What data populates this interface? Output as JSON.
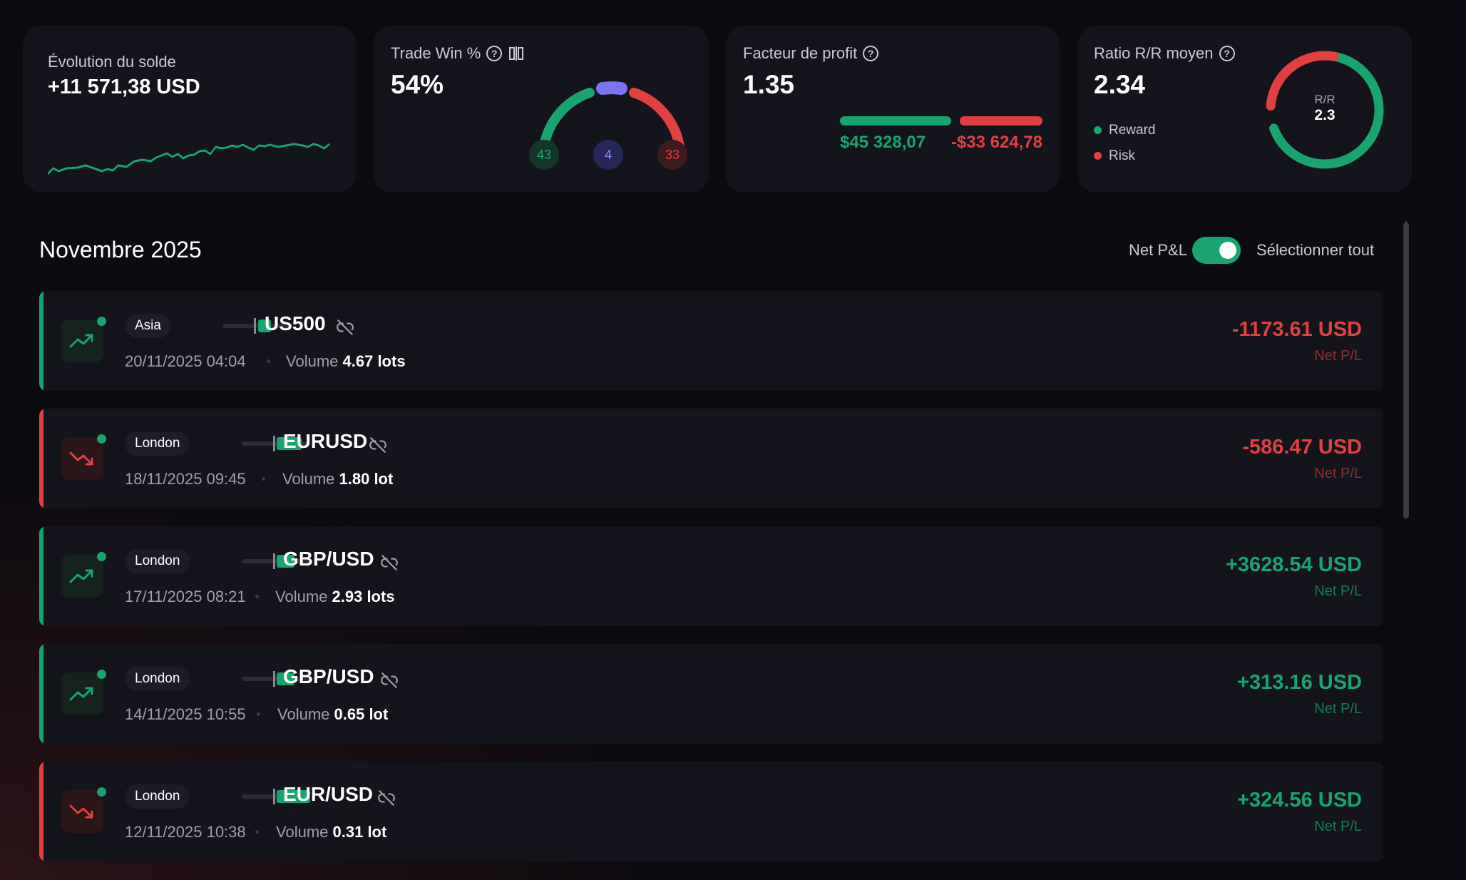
{
  "colors": {
    "green": "#17a46e",
    "red": "#e0403f",
    "purple": "#7b74f0",
    "card_bg": "#13141c"
  },
  "cards": {
    "balance": {
      "title": "Évolution du solde",
      "value": "+11 571,38 USD"
    },
    "winrate": {
      "title": "Trade Win %",
      "value": "54%",
      "wins": "43",
      "breakeven": "4",
      "losses": "33"
    },
    "profit_factor": {
      "title": "Facteur de profit",
      "value": "1.35",
      "gross_profit": "$45 328,07",
      "gross_loss": "-$33 624,78",
      "profit_share": 0.574
    },
    "rr": {
      "title": "Ratio R/R moyen",
      "value": "2.34",
      "legend_reward": "Reward",
      "legend_risk": "Risk",
      "gauge_label": "R/R",
      "gauge_value": "2.3",
      "reward_share": 0.7
    }
  },
  "section": {
    "month": "Novembre 2025",
    "netpl_label": "Net P&L",
    "netpl_toggle_on": true,
    "select_all": "Sélectionner tout"
  },
  "trades": [
    {
      "session": "Asia",
      "symbol": "US500",
      "date": "20/11/2025 04:04",
      "volume_label": "Volume",
      "volume": "4.67 lots",
      "pnl": "-1173.61 USD",
      "pnl_label": "Net P/L",
      "direction": "up",
      "result": "loss"
    },
    {
      "session": "London",
      "symbol": "EURUSD",
      "date": "18/11/2025 09:45",
      "volume_label": "Volume",
      "volume": "1.80 lot",
      "pnl": "-586.47 USD",
      "pnl_label": "Net P/L",
      "direction": "down",
      "result": "loss"
    },
    {
      "session": "London",
      "symbol": "GBP/USD",
      "date": "17/11/2025 08:21",
      "volume_label": "Volume",
      "volume": "2.93 lots",
      "pnl": "+3628.54 USD",
      "pnl_label": "Net P/L",
      "direction": "up",
      "result": "win"
    },
    {
      "session": "London",
      "symbol": "GBP/USD",
      "date": "14/11/2025 10:55",
      "volume_label": "Volume",
      "volume": "0.65 lot",
      "pnl": "+313.16 USD",
      "pnl_label": "Net P/L",
      "direction": "up",
      "result": "win"
    },
    {
      "session": "London",
      "symbol": "EUR/USD",
      "date": "12/11/2025 10:38",
      "volume_label": "Volume",
      "volume": "0.31 lot",
      "pnl": "+324.56 USD",
      "pnl_label": "Net P/L",
      "direction": "down",
      "result": "win"
    }
  ]
}
